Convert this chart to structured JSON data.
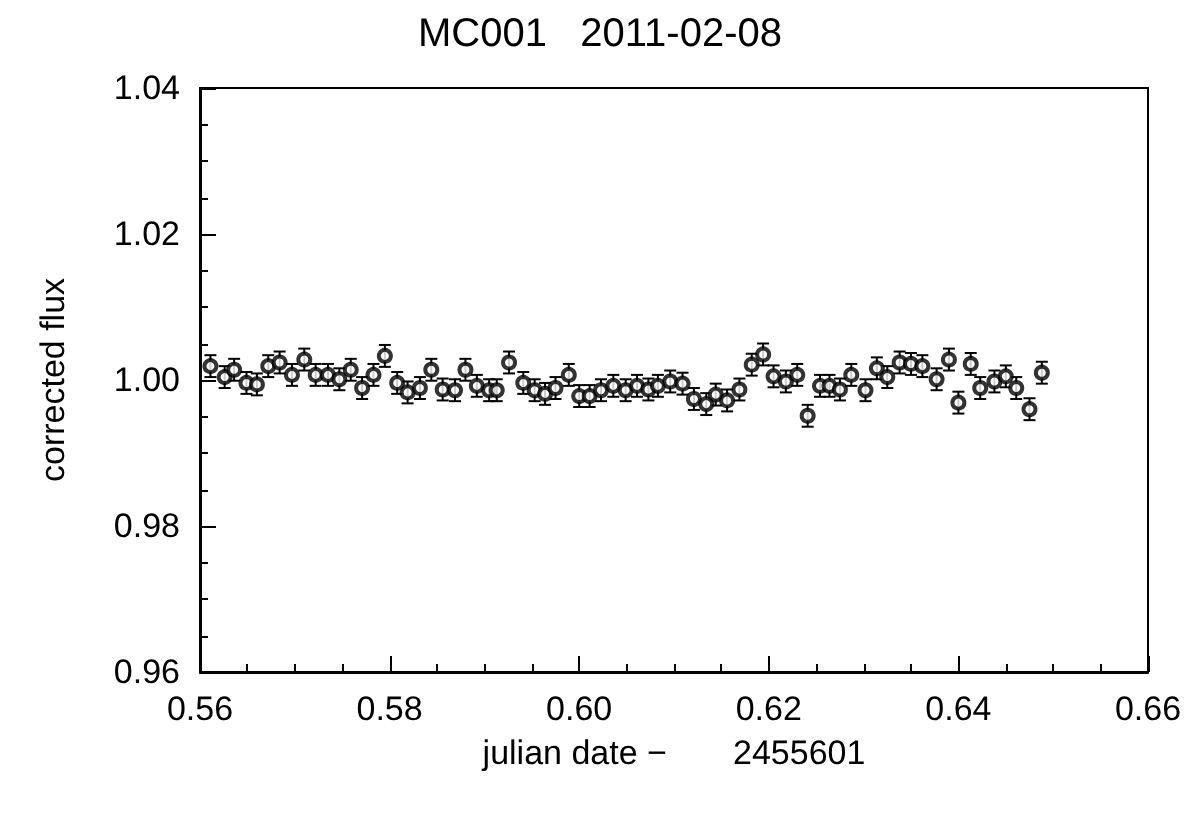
{
  "chart_data": {
    "type": "scatter",
    "title": "MC001   2011-02-08",
    "xlabel": "julian date −       2455601",
    "ylabel": "corrected flux",
    "x": [
      0.5611,
      0.5626,
      0.5636,
      0.5649,
      0.566,
      0.5672,
      0.5684,
      0.5697,
      0.571,
      0.5722,
      0.5735,
      0.5747,
      0.5759,
      0.5771,
      0.5783,
      0.5795,
      0.5808,
      0.5819,
      0.5832,
      0.5844,
      0.5856,
      0.5869,
      0.588,
      0.5892,
      0.5905,
      0.5913,
      0.5926,
      0.5941,
      0.5953,
      0.5964,
      0.5975,
      0.5989,
      0.6,
      0.6011,
      0.6023,
      0.6036,
      0.6049,
      0.6061,
      0.6073,
      0.6083,
      0.6096,
      0.6109,
      0.6121,
      0.6134,
      0.6144,
      0.6156,
      0.6169,
      0.6182,
      0.6194,
      0.6205,
      0.6218,
      0.623,
      0.6241,
      0.6254,
      0.6264,
      0.6275,
      0.6287,
      0.6302,
      0.6314,
      0.6325,
      0.6338,
      0.635,
      0.6362,
      0.6377,
      0.639,
      0.64,
      0.6413,
      0.6423,
      0.6438,
      0.645,
      0.6461,
      0.6475,
      0.6488
    ],
    "series": [
      {
        "color": "#000000",
        "values": [
          1.0019,
          1.0004,
          1.0014,
          0.9996,
          0.9994,
          1.0019,
          1.0024,
          1.0007,
          1.0028,
          1.0007,
          1.0007,
          1.0001,
          1.0014,
          0.9989,
          1.0007,
          1.0033,
          0.9996,
          0.9983,
          0.9989,
          1.0014,
          0.9987,
          0.9986,
          1.0014,
          0.9992,
          0.9986,
          0.9986,
          1.0024,
          0.9996,
          0.9986,
          0.9981,
          0.9989,
          1.0007,
          0.9978,
          0.9978,
          0.9986,
          0.9992,
          0.9986,
          0.9992,
          0.9987,
          0.9992,
          0.9998,
          0.9995,
          0.9974,
          0.9967,
          0.998,
          0.9972,
          0.9987,
          1.0021,
          1.0035,
          1.0005,
          0.9998,
          1.0007,
          0.9951,
          0.9992,
          0.9992,
          0.9987,
          1.0007,
          0.9986,
          1.0016,
          1.0004,
          1.0024,
          1.0022,
          1.0019,
          1.0001,
          1.0028,
          0.9969,
          1.0022,
          0.9989,
          0.9998,
          1.0005,
          0.9989,
          0.996,
          1.001
        ],
        "errors": [
          0.0015,
          0.0015,
          0.0015,
          0.0015,
          0.0015,
          0.0015,
          0.0015,
          0.0015,
          0.0015,
          0.0015,
          0.0015,
          0.0015,
          0.0015,
          0.0015,
          0.0015,
          0.0015,
          0.0015,
          0.0015,
          0.0015,
          0.0015,
          0.0015,
          0.0015,
          0.0015,
          0.0015,
          0.0015,
          0.0015,
          0.0015,
          0.0015,
          0.0015,
          0.0015,
          0.0015,
          0.0015,
          0.0015,
          0.0015,
          0.0015,
          0.0015,
          0.0015,
          0.0015,
          0.0015,
          0.0015,
          0.0015,
          0.0015,
          0.0015,
          0.0015,
          0.0015,
          0.0015,
          0.0015,
          0.0015,
          0.0015,
          0.0015,
          0.0015,
          0.0015,
          0.0015,
          0.0015,
          0.0015,
          0.0015,
          0.0015,
          0.0015,
          0.0015,
          0.0015,
          0.0015,
          0.0015,
          0.0015,
          0.0015,
          0.0015,
          0.0015,
          0.0015,
          0.0015,
          0.0015,
          0.0015,
          0.0015,
          0.0015,
          0.0015
        ]
      }
    ],
    "xlim": [
      0.56,
      0.66
    ],
    "xticks": [
      {
        "value": 0.56,
        "label": "0.56"
      },
      {
        "value": 0.58,
        "label": "0.58"
      },
      {
        "value": 0.6,
        "label": "0.60"
      },
      {
        "value": 0.62,
        "label": "0.62"
      },
      {
        "value": 0.64,
        "label": "0.64"
      },
      {
        "value": 0.66,
        "label": "0.66"
      }
    ],
    "ylim": [
      0.96,
      1.04
    ],
    "yticks": [
      {
        "value": 0.96,
        "label": "0.96"
      },
      {
        "value": 0.98,
        "label": "0.98"
      },
      {
        "value": 1,
        "label": "1.00"
      },
      {
        "value": 1.02,
        "label": "1.02"
      },
      {
        "value": 1.04,
        "label": "1.04"
      }
    ],
    "grid": false,
    "marker": "circle"
  }
}
